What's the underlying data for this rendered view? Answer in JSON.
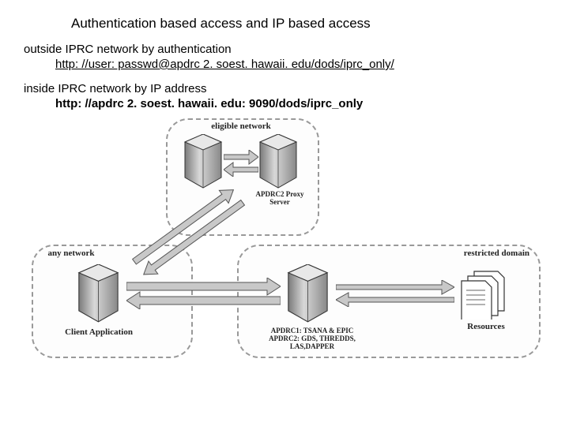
{
  "title": "Authentication based access and IP based access",
  "outside": {
    "heading": "outside IPRC network by authentication",
    "url": "http: //user: passwd@apdrc 2. soest. hawaii. edu/dods/iprc_only/"
  },
  "inside": {
    "heading": "inside IPRC network  by IP address",
    "url": "http: //apdrc 2. soest. hawaii. edu: 9090/dods/iprc_only"
  },
  "diagram": {
    "type": "network",
    "groups": {
      "eligible": {
        "label": "eligible network",
        "border": "#999999",
        "bg": "#fdfdfd"
      },
      "any": {
        "label": "any network",
        "border": "#999999",
        "bg": "#fdfdfd"
      },
      "restricted": {
        "label": "restricted domain",
        "border": "#999999",
        "bg": "#fdfdfd"
      }
    },
    "nodes": {
      "topClient": {
        "shape": "hexcylinder",
        "fill": "#b8b8b8",
        "stroke": "#333333"
      },
      "proxy": {
        "label": "APDRC2 Proxy\nServer",
        "shape": "hexcylinder",
        "fill": "#b8b8b8",
        "stroke": "#333333"
      },
      "client": {
        "label": "Client Application",
        "shape": "hexcylinder",
        "fill": "#b8b8b8",
        "stroke": "#333333"
      },
      "server": {
        "label": "APDRC1: TSANA & EPIC\nAPDRC2: GDS, THREDDS, LAS,DAPPER",
        "shape": "hexcylinder",
        "fill": "#b8b8b8",
        "stroke": "#333333"
      },
      "resources": {
        "label": "Resources",
        "shape": "docs",
        "fill": "#ffffff",
        "stroke": "#333333"
      }
    },
    "edges": [
      {
        "from": "topClient",
        "to": "proxy",
        "style": "double-arrow",
        "color": "#c0c0c0"
      },
      {
        "from": "client",
        "to": "proxy",
        "style": "double-arrow-diag",
        "color": "#c0c0c0"
      },
      {
        "from": "client",
        "to": "server",
        "style": "double-arrow",
        "color": "#c0c0c0"
      },
      {
        "from": "server",
        "to": "resources",
        "style": "double-arrow",
        "color": "#c0c0c0"
      }
    ],
    "colors": {
      "background": "#ffffff",
      "arrow_fill": "#c8c8c8",
      "arrow_stroke": "#555555",
      "text": "#222222"
    },
    "fonts": {
      "group_label_pt": 11,
      "node_label_pt": 9,
      "family": "Times New Roman"
    }
  }
}
